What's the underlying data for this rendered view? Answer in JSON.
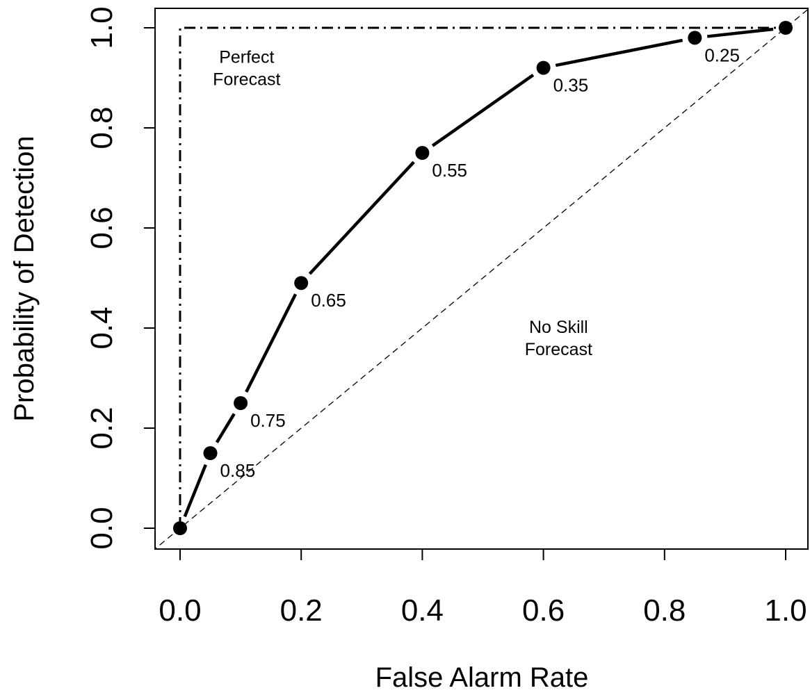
{
  "chart_data": {
    "type": "line",
    "title": "",
    "xlabel": "False Alarm Rate",
    "ylabel": "Probability of Detection",
    "xlim": [
      0,
      1
    ],
    "ylim": [
      0,
      1
    ],
    "xticks": [
      0.0,
      0.2,
      0.4,
      0.6,
      0.8,
      1.0
    ],
    "xtick_labels": [
      "0.0",
      "0.2",
      "0.4",
      "0.6",
      "0.8",
      "1.0"
    ],
    "yticks": [
      0.0,
      0.2,
      0.4,
      0.6,
      0.8,
      1.0
    ],
    "ytick_labels": [
      "0.0",
      "0.2",
      "0.4",
      "0.6",
      "0.8",
      "1.0"
    ],
    "grid": false,
    "legend": "none",
    "series": [
      {
        "style": "solid line with points",
        "x": [
          0.0,
          0.05,
          0.1,
          0.2,
          0.4,
          0.6,
          0.85,
          1.0
        ],
        "y": [
          0.0,
          0.15,
          0.25,
          0.49,
          0.75,
          0.92,
          0.98,
          1.0
        ],
        "point_labels": [
          "",
          "0.85",
          "0.75",
          "0.65",
          "0.55",
          "0.35",
          "0.25",
          ""
        ]
      }
    ],
    "reference_lines": [
      {
        "style": "dash-dot",
        "x": [
          0.0,
          0.0,
          1.0
        ],
        "y": [
          0.0,
          1.0,
          1.0
        ],
        "annotation": [
          "Perfect",
          "Forecast"
        ],
        "annotation_xy": [
          0.11,
          0.93
        ]
      },
      {
        "style": "dashed",
        "x": [
          -0.1,
          1.1
        ],
        "y": [
          -0.1,
          1.1
        ],
        "annotation": [
          "No Skill",
          "Forecast"
        ],
        "annotation_xy": [
          0.625,
          0.39
        ]
      }
    ]
  }
}
